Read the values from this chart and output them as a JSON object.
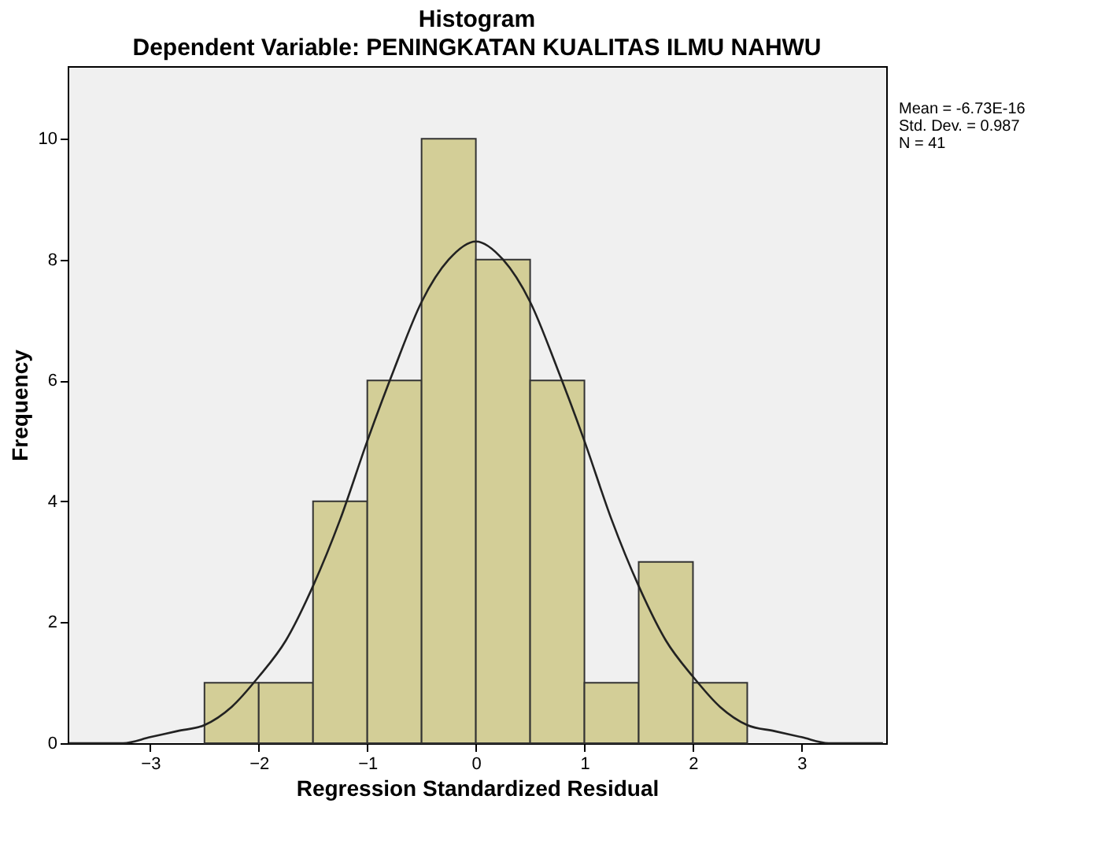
{
  "chart_data": {
    "type": "histogram",
    "title": "Histogram",
    "subtitle": "Dependent Variable: PENINGKATAN KUALITAS ILMU NAHWU",
    "xlabel": "Regression Standardized Residual",
    "ylabel": "Frequency",
    "annotations": [
      "Mean = -6.73E-16",
      "Std. Dev. = 0.987",
      "N = 41"
    ],
    "series": [
      {
        "type": "histogram",
        "color": "#d3ce97",
        "bins": [
          -2.5,
          -2.0,
          -1.5,
          -1.0,
          -0.5,
          0.0,
          0.5,
          1.0,
          1.5,
          2.0,
          2.5
        ],
        "values": [
          1,
          1,
          4,
          6,
          10,
          8,
          6,
          1,
          3,
          1
        ]
      },
      {
        "type": "line",
        "color": "#222222",
        "x": [
          -3.75,
          -3.5,
          -3.25,
          -3.0,
          -2.75,
          -2.5,
          -2.25,
          -2.0,
          -1.75,
          -1.5,
          -1.25,
          -1.0,
          -0.75,
          -0.5,
          -0.25,
          0.0,
          0.25,
          0.5,
          0.75,
          1.0,
          1.25,
          1.5,
          1.75,
          2.0,
          2.25,
          2.5,
          2.75,
          3.0,
          3.25,
          3.5,
          3.75
        ],
        "values": [
          0.0,
          0.0,
          0.0,
          0.1,
          0.2,
          0.3,
          0.6,
          1.1,
          1.7,
          2.6,
          3.7,
          5.0,
          6.2,
          7.3,
          8.0,
          8.3,
          8.0,
          7.3,
          6.2,
          5.0,
          3.7,
          2.6,
          1.7,
          1.1,
          0.6,
          0.3,
          0.2,
          0.1,
          0.0,
          0.0,
          0.0
        ]
      }
    ],
    "xlim": [
      -3.76,
      3.78
    ],
    "ylim": [
      0,
      11.2
    ],
    "xticks": [
      -3,
      -2,
      -1,
      0,
      1,
      2,
      3
    ],
    "yticks": [
      0,
      2,
      4,
      6,
      8,
      10
    ],
    "grid": false,
    "legend": false
  }
}
